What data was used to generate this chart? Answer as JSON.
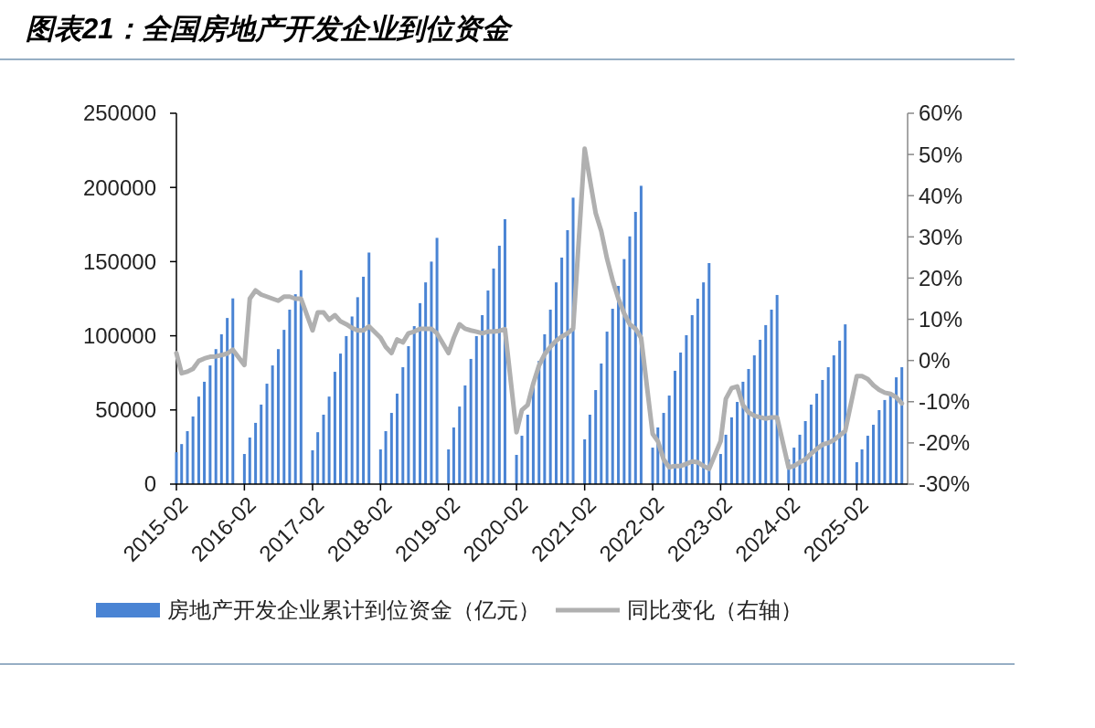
{
  "chart_data": {
    "type": "bar",
    "title": "图表21：全国房地产开发企业到位资金",
    "x": [
      "2015-02",
      "2015-03",
      "2015-04",
      "2015-05",
      "2015-06",
      "2015-07",
      "2015-08",
      "2015-09",
      "2015-10",
      "2015-11",
      "2015-12",
      "2016-02",
      "2016-03",
      "2016-04",
      "2016-05",
      "2016-06",
      "2016-07",
      "2016-08",
      "2016-09",
      "2016-10",
      "2016-11",
      "2016-12",
      "2017-02",
      "2017-03",
      "2017-04",
      "2017-05",
      "2017-06",
      "2017-07",
      "2017-08",
      "2017-09",
      "2017-10",
      "2017-11",
      "2017-12",
      "2018-02",
      "2018-03",
      "2018-04",
      "2018-05",
      "2018-06",
      "2018-07",
      "2018-08",
      "2018-09",
      "2018-10",
      "2018-11",
      "2018-12",
      "2019-02",
      "2019-03",
      "2019-04",
      "2019-05",
      "2019-06",
      "2019-07",
      "2019-08",
      "2019-09",
      "2019-10",
      "2019-11",
      "2019-12",
      "2020-02",
      "2020-03",
      "2020-04",
      "2020-05",
      "2020-06",
      "2020-07",
      "2020-08",
      "2020-09",
      "2020-10",
      "2020-11",
      "2020-12",
      "2021-02",
      "2021-03",
      "2021-04",
      "2021-05",
      "2021-06",
      "2021-07",
      "2021-08",
      "2021-09",
      "2021-10",
      "2021-11",
      "2021-12",
      "2022-02",
      "2022-03",
      "2022-04",
      "2022-05",
      "2022-06",
      "2022-07",
      "2022-08",
      "2022-09",
      "2022-10",
      "2022-11",
      "2022-12",
      "2023-02",
      "2023-03",
      "2023-04",
      "2023-05",
      "2023-06",
      "2023-07",
      "2023-08",
      "2023-09",
      "2023-10",
      "2023-11",
      "2023-12",
      "2024-02",
      "2024-03",
      "2024-04",
      "2024-05",
      "2024-06",
      "2024-07",
      "2024-08",
      "2024-09",
      "2024-10",
      "2024-11",
      "2024-12",
      "2025-02",
      "2025-03",
      "2025-04",
      "2025-05",
      "2025-06",
      "2025-07",
      "2025-08",
      "2025-09",
      "2025-10"
    ],
    "series": [
      {
        "name": "房地产开发企业累计到位资金（亿元）",
        "color": "#4a84d4",
        "values": [
          21500,
          27000,
          35700,
          45600,
          59000,
          69000,
          80000,
          91000,
          101000,
          112000,
          125200,
          20300,
          31400,
          41300,
          53600,
          67700,
          80000,
          91000,
          104000,
          117600,
          128000,
          144200,
          22800,
          35000,
          46800,
          59000,
          75700,
          88000,
          99800,
          113000,
          126000,
          139800,
          156100,
          23400,
          35700,
          48000,
          61000,
          78800,
          93000,
          106500,
          122000,
          136000,
          150000,
          166000,
          23400,
          38200,
          52300,
          66500,
          84400,
          99800,
          113900,
          130500,
          145300,
          160700,
          178600,
          19700,
          32600,
          46800,
          65900,
          83100,
          101000,
          117600,
          136000,
          152700,
          171200,
          193100,
          30200,
          46800,
          63400,
          81300,
          102800,
          118200,
          133600,
          151700,
          167000,
          183500,
          201100,
          24600,
          38200,
          48000,
          59700,
          76400,
          88700,
          100400,
          113900,
          125000,
          136000,
          149000,
          20300,
          33300,
          45000,
          55400,
          69000,
          77600,
          86800,
          97300,
          107200,
          117600,
          127500,
          16600,
          24600,
          33300,
          42500,
          53600,
          61000,
          70200,
          78800,
          86800,
          96700,
          107700,
          14800,
          23400,
          32600,
          40000,
          49900,
          56700,
          60300,
          72000,
          78800
        ]
      },
      {
        "name": "同比变化（右轴）",
        "type": "line",
        "axis": "y2",
        "color": "#b0b0b0",
        "values": [
          1.8,
          -3.1,
          -2.7,
          -2.0,
          -0.1,
          0.5,
          0.9,
          1.0,
          1.3,
          1.7,
          2.6,
          -1.1,
          15,
          17,
          16,
          15.5,
          15,
          14.5,
          15.5,
          15.5,
          15,
          15,
          7.3,
          11.7,
          11.7,
          9.9,
          11,
          9.5,
          8.8,
          7.9,
          7.3,
          7.3,
          8.3,
          5.5,
          3.3,
          1.8,
          5.1,
          4.4,
          6.6,
          7,
          7.7,
          7.7,
          7.7,
          6.6,
          1.8,
          5.5,
          8.8,
          7.7,
          7.3,
          7,
          6.6,
          7,
          7,
          7.2,
          7.6,
          -17.4,
          -12,
          -10.8,
          -5.6,
          -1.2,
          1.5,
          3.3,
          4.8,
          5.8,
          6.6,
          7.7,
          51.4,
          43.9,
          35.8,
          31.4,
          24.7,
          19.5,
          15,
          11.4,
          8.8,
          7.7,
          5.5,
          -17.8,
          -19.6,
          -24,
          -25.9,
          -25.6,
          -25.6,
          -25.1,
          -24.5,
          -24.7,
          -25.6,
          -26.3,
          -19.6,
          -9.3,
          -6.7,
          -6.3,
          -10.8,
          -12.6,
          -13.4,
          -13.8,
          -14.1,
          -13.8,
          -13.8,
          -26,
          -25.6,
          -24.7,
          -24,
          -22.6,
          -21.5,
          -20.4,
          -20,
          -19.3,
          -18.2,
          -17.1,
          -3.8,
          -3.8,
          -4.5,
          -6,
          -7.1,
          -7.8,
          -8.1,
          -8.9,
          -10.4
        ]
      }
    ],
    "xlim": [
      "2015-02",
      "2025-11"
    ],
    "xticks": [
      {
        "value": "2015-02",
        "label": "2015-02"
      },
      {
        "value": "2016-02",
        "label": "2016-02"
      },
      {
        "value": "2017-02",
        "label": "2017-02"
      },
      {
        "value": "2018-02",
        "label": "2018-02"
      },
      {
        "value": "2019-02",
        "label": "2019-02"
      },
      {
        "value": "2020-02",
        "label": "2020-02"
      },
      {
        "value": "2021-02",
        "label": "2021-02"
      },
      {
        "value": "2022-02",
        "label": "2022-02"
      },
      {
        "value": "2023-02",
        "label": "2023-02"
      },
      {
        "value": "2024-02",
        "label": "2024-02"
      },
      {
        "value": "2025-02",
        "label": "2025-02"
      }
    ],
    "ylim": [
      0,
      250000
    ],
    "yticks": [
      0,
      50000,
      100000,
      150000,
      200000,
      250000
    ],
    "y2lim": [
      -30,
      60
    ],
    "y2ticks": [
      {
        "value": -30,
        "label": "-30%"
      },
      {
        "value": -20,
        "label": "-20%"
      },
      {
        "value": -10,
        "label": "-10%"
      },
      {
        "value": 0,
        "label": "0%"
      },
      {
        "value": 10,
        "label": "10%"
      },
      {
        "value": 20,
        "label": "20%"
      },
      {
        "value": 30,
        "label": "30%"
      },
      {
        "value": 40,
        "label": "40%"
      },
      {
        "value": 50,
        "label": "50%"
      },
      {
        "value": 60,
        "label": "60%"
      }
    ],
    "legend": "bottom",
    "grid": false
  }
}
